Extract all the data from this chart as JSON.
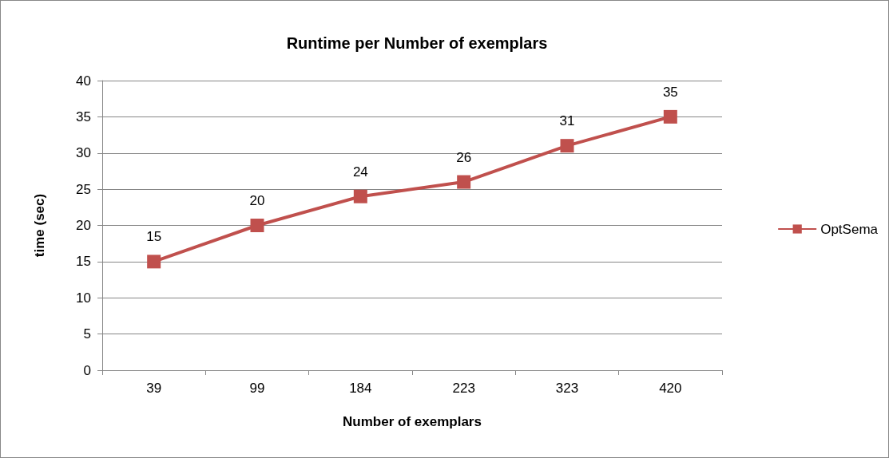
{
  "chart_data": {
    "type": "line",
    "title": "Runtime per Number of exemplars",
    "xlabel": "Number of exemplars",
    "ylabel": "time (sec)",
    "categories": [
      "39",
      "99",
      "184",
      "223",
      "323",
      "420"
    ],
    "series": [
      {
        "name": "OptSema",
        "color": "#c0504d",
        "values": [
          15,
          20,
          24,
          26,
          31,
          35
        ]
      }
    ],
    "ylim": [
      0,
      40
    ],
    "yticks": [
      0,
      5,
      10,
      15,
      20,
      25,
      30,
      35,
      40
    ],
    "grid": "y",
    "legend": "right",
    "marker": "square",
    "line_style": "solid",
    "data_labels": true
  }
}
